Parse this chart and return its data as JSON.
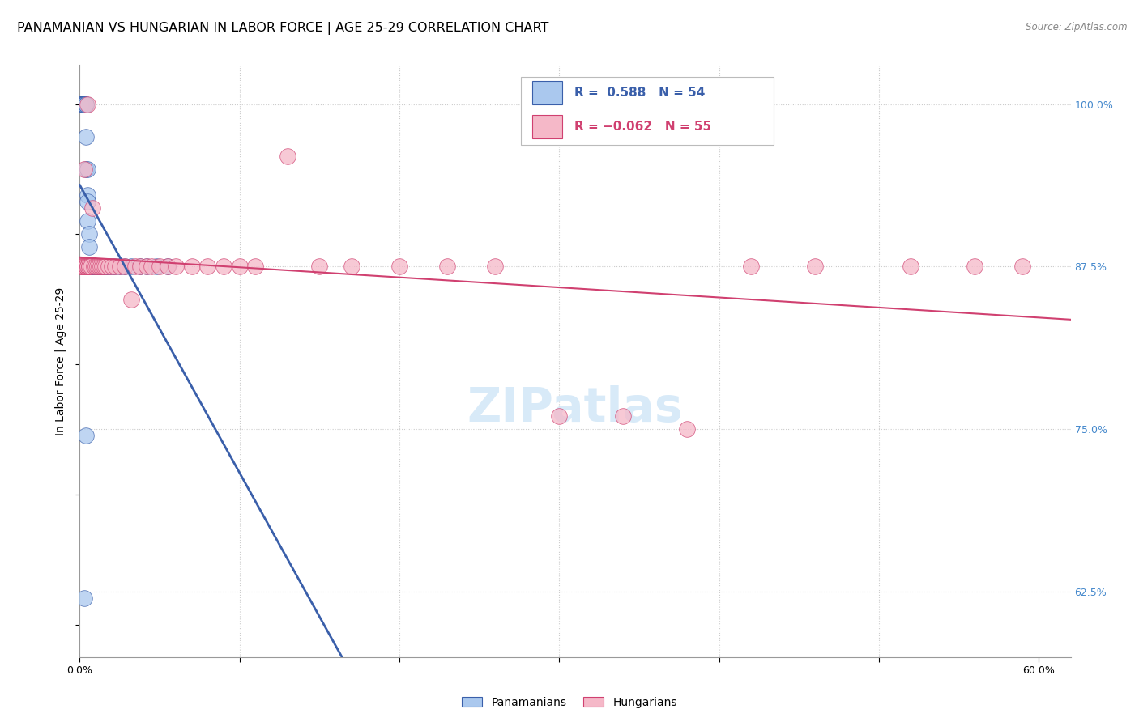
{
  "title": "PANAMANIAN VS HUNGARIAN IN LABOR FORCE | AGE 25-29 CORRELATION CHART",
  "source_text": "Source: ZipAtlas.com",
  "ylabel": "In Labor Force | Age 25-29",
  "legend_labels": [
    "Panamanians",
    "Hungarians"
  ],
  "xlim": [
    0.0,
    0.62
  ],
  "ylim": [
    0.575,
    1.03
  ],
  "color_blue": "#aac8ee",
  "color_pink": "#f5b8c8",
  "line_blue": "#3a5faa",
  "line_pink": "#d04070",
  "background_color": "#ffffff",
  "watermark": "ZIPatlas",
  "grid_color": "#cccccc",
  "title_fontsize": 11.5,
  "axis_label_fontsize": 10,
  "tick_fontsize": 9,
  "watermark_color": "#d8eaf8",
  "right_tick_color": "#4488cc",
  "blue_scatter_x": [
    0.001,
    0.001,
    0.001,
    0.001,
    0.002,
    0.002,
    0.002,
    0.002,
    0.002,
    0.003,
    0.003,
    0.003,
    0.003,
    0.003,
    0.004,
    0.004,
    0.004,
    0.004,
    0.005,
    0.005,
    0.005,
    0.005,
    0.006,
    0.006,
    0.006,
    0.007,
    0.007,
    0.008,
    0.008,
    0.009,
    0.009,
    0.01,
    0.01,
    0.011,
    0.011,
    0.012,
    0.012,
    0.013,
    0.014,
    0.015,
    0.016,
    0.017,
    0.018,
    0.02,
    0.022,
    0.025,
    0.028,
    0.032,
    0.038,
    0.042,
    0.048,
    0.055,
    0.004,
    0.003
  ],
  "blue_scatter_y": [
    1.0,
    1.0,
    1.0,
    1.0,
    1.0,
    1.0,
    1.0,
    1.0,
    1.0,
    1.0,
    1.0,
    1.0,
    1.0,
    1.0,
    1.0,
    1.0,
    0.975,
    0.95,
    0.95,
    0.93,
    0.925,
    0.91,
    0.9,
    0.89,
    0.875,
    0.875,
    0.875,
    0.875,
    0.875,
    0.875,
    0.875,
    0.875,
    0.875,
    0.875,
    0.875,
    0.875,
    0.875,
    0.875,
    0.875,
    0.875,
    0.875,
    0.875,
    0.875,
    0.875,
    0.875,
    0.875,
    0.875,
    0.875,
    0.875,
    0.875,
    0.875,
    0.875,
    0.745,
    0.62
  ],
  "pink_scatter_x": [
    0.001,
    0.001,
    0.002,
    0.002,
    0.003,
    0.003,
    0.004,
    0.004,
    0.005,
    0.005,
    0.006,
    0.006,
    0.007,
    0.008,
    0.009,
    0.01,
    0.011,
    0.012,
    0.013,
    0.014,
    0.015,
    0.016,
    0.018,
    0.02,
    0.022,
    0.025,
    0.028,
    0.032,
    0.035,
    0.038,
    0.042,
    0.045,
    0.05,
    0.055,
    0.06,
    0.07,
    0.08,
    0.09,
    0.1,
    0.11,
    0.13,
    0.15,
    0.17,
    0.2,
    0.23,
    0.26,
    0.3,
    0.34,
    0.38,
    0.42,
    0.46,
    0.52,
    0.56,
    0.59,
    0.005
  ],
  "pink_scatter_y": [
    0.875,
    0.875,
    0.875,
    0.875,
    0.875,
    0.95,
    0.875,
    0.875,
    0.875,
    0.875,
    0.875,
    0.875,
    0.875,
    0.92,
    0.875,
    0.875,
    0.875,
    0.875,
    0.875,
    0.875,
    0.875,
    0.875,
    0.875,
    0.875,
    0.875,
    0.875,
    0.875,
    0.85,
    0.875,
    0.875,
    0.875,
    0.875,
    0.875,
    0.875,
    0.875,
    0.875,
    0.875,
    0.875,
    0.875,
    0.875,
    0.96,
    0.875,
    0.875,
    0.875,
    0.875,
    0.875,
    0.76,
    0.76,
    0.75,
    0.875,
    0.875,
    0.875,
    0.875,
    0.875,
    1.0
  ]
}
